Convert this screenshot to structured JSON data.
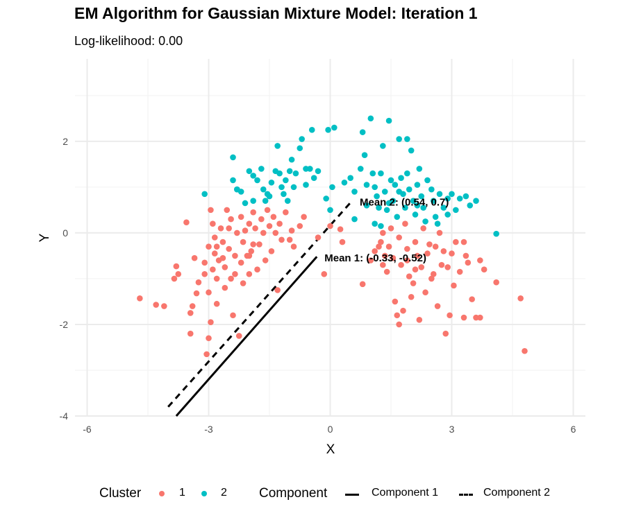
{
  "chart_data": {
    "type": "scatter",
    "title": "EM Algorithm for Gaussian Mixture Model: Iteration 1",
    "subtitle": "Log-likelihood: 0.00",
    "xlabel": "X",
    "ylabel": "Y",
    "xlim": [
      -6.3,
      6.3
    ],
    "ylim": [
      -4,
      3.8
    ],
    "x_ticks": [
      -6,
      -3,
      0,
      3,
      6
    ],
    "y_ticks": [
      -4,
      -2,
      0,
      2
    ],
    "grid": true,
    "legend_position": "bottom",
    "legend": {
      "cluster_title": "Cluster",
      "component_title": "Component",
      "cluster_labels": [
        "1",
        "2"
      ],
      "component_labels": [
        "Component 1",
        "Component 2"
      ]
    },
    "colors": {
      "cluster1": "#F8766D",
      "cluster2": "#00BFC4",
      "line": "#000000"
    },
    "means": [
      {
        "label": "Mean 1: (-0.33, -0.52)",
        "x": -0.33,
        "y": -0.52
      },
      {
        "label": "Mean 2: (0.54, 0.7)",
        "x": 0.54,
        "y": 0.7
      }
    ],
    "component_lines": [
      {
        "name": "Component 1",
        "style": "solid",
        "x": [
          -3.8,
          -0.33
        ],
        "y": [
          -4.0,
          -0.52
        ]
      },
      {
        "name": "Component 2",
        "style": "dashed",
        "x": [
          -4.0,
          0.54
        ],
        "y": [
          -3.8,
          0.7
        ]
      }
    ],
    "series": [
      {
        "name": "1",
        "points": [
          [
            -4.7,
            -1.43
          ],
          [
            -4.3,
            -1.57
          ],
          [
            -4.1,
            -1.6
          ],
          [
            -3.8,
            -0.73
          ],
          [
            -3.85,
            -1.0
          ],
          [
            -3.75,
            -0.9
          ],
          [
            -3.55,
            0.23
          ],
          [
            -3.45,
            -1.75
          ],
          [
            -3.45,
            -2.2
          ],
          [
            -3.4,
            -1.6
          ],
          [
            -3.35,
            -0.55
          ],
          [
            -3.3,
            -1.32
          ],
          [
            -3.25,
            -1.08
          ],
          [
            -3.1,
            -0.65
          ],
          [
            -3.1,
            -0.9
          ],
          [
            -3.0,
            -1.3
          ],
          [
            -3.05,
            -2.65
          ],
          [
            -3.0,
            -2.3
          ],
          [
            -2.95,
            -1.95
          ],
          [
            -3.0,
            -0.3
          ],
          [
            -2.95,
            0.5
          ],
          [
            -2.9,
            0.2
          ],
          [
            -2.85,
            -0.1
          ],
          [
            -2.8,
            -0.3
          ],
          [
            -2.8,
            -1.55
          ],
          [
            -2.8,
            -1.0
          ],
          [
            -2.75,
            -0.6
          ],
          [
            -2.7,
            0.1
          ],
          [
            -2.65,
            -0.2
          ],
          [
            -2.6,
            -0.75
          ],
          [
            -2.6,
            -1.2
          ],
          [
            -2.55,
            0.5
          ],
          [
            -2.5,
            -0.35
          ],
          [
            -2.45,
            0.3
          ],
          [
            -2.45,
            -1.0
          ],
          [
            -2.4,
            -1.8
          ],
          [
            -2.35,
            -0.5
          ],
          [
            -2.35,
            -0.9
          ],
          [
            -2.3,
            0.0
          ],
          [
            -2.25,
            -2.25
          ],
          [
            -2.2,
            0.35
          ],
          [
            -2.15,
            -0.2
          ],
          [
            -2.15,
            -1.1
          ],
          [
            -2.1,
            0.05
          ],
          [
            -2.05,
            -0.5
          ],
          [
            -2.0,
            -0.9
          ],
          [
            -2.0,
            0.2
          ],
          [
            -1.95,
            -0.4
          ],
          [
            -1.9,
            0.45
          ],
          [
            -1.85,
            0.1
          ],
          [
            -1.8,
            -0.8
          ],
          [
            -1.75,
            -0.25
          ],
          [
            -1.7,
            0.3
          ],
          [
            -1.65,
            0.0
          ],
          [
            -1.6,
            -0.6
          ],
          [
            -1.55,
            0.5
          ],
          [
            -1.5,
            0.15
          ],
          [
            -1.45,
            -0.4
          ],
          [
            -1.4,
            0.35
          ],
          [
            -1.35,
            0.0
          ],
          [
            -1.3,
            -1.25
          ],
          [
            -1.25,
            0.2
          ],
          [
            -1.2,
            -0.15
          ],
          [
            -1.1,
            0.45
          ],
          [
            -1.0,
            -0.15
          ],
          [
            -0.95,
            0.05
          ],
          [
            -0.9,
            -0.3
          ],
          [
            -0.75,
            0.15
          ],
          [
            -0.65,
            0.35
          ],
          [
            -0.3,
            -0.1
          ],
          [
            -0.15,
            -0.9
          ],
          [
            0.0,
            0.15
          ],
          [
            0.25,
            0.08
          ],
          [
            0.3,
            -0.2
          ],
          [
            0.8,
            -1.12
          ],
          [
            1.1,
            -0.4
          ],
          [
            1.2,
            -0.3
          ],
          [
            1.25,
            -0.2
          ],
          [
            1.3,
            0.0
          ],
          [
            1.35,
            -0.5
          ],
          [
            1.4,
            -0.85
          ],
          [
            1.45,
            -0.3
          ],
          [
            1.5,
            0.1
          ],
          [
            1.55,
            -0.55
          ],
          [
            1.6,
            -1.5
          ],
          [
            1.65,
            -1.8
          ],
          [
            1.7,
            -0.1
          ],
          [
            1.75,
            -0.7
          ],
          [
            1.8,
            -1.7
          ],
          [
            1.85,
            0.2
          ],
          [
            1.9,
            -0.35
          ],
          [
            1.95,
            -0.95
          ],
          [
            2.0,
            -1.4
          ],
          [
            2.05,
            -1.1
          ],
          [
            2.1,
            -0.2
          ],
          [
            2.15,
            -0.5
          ],
          [
            2.2,
            -1.9
          ],
          [
            2.25,
            -0.75
          ],
          [
            2.3,
            0.1
          ],
          [
            2.35,
            -1.3
          ],
          [
            2.4,
            -0.45
          ],
          [
            2.5,
            -1.0
          ],
          [
            2.6,
            -0.3
          ],
          [
            2.65,
            -1.6
          ],
          [
            2.7,
            0.0
          ],
          [
            2.75,
            -0.7
          ],
          [
            2.85,
            -2.2
          ],
          [
            2.9,
            -0.75
          ],
          [
            2.95,
            -1.8
          ],
          [
            3.0,
            -0.45
          ],
          [
            3.05,
            -1.15
          ],
          [
            3.1,
            -0.2
          ],
          [
            3.2,
            -0.85
          ],
          [
            3.3,
            -1.85
          ],
          [
            3.35,
            -0.5
          ],
          [
            3.4,
            -0.65
          ],
          [
            3.5,
            -1.45
          ],
          [
            3.6,
            -1.85
          ],
          [
            3.7,
            -1.85
          ],
          [
            3.8,
            -0.8
          ],
          [
            4.1,
            -1.08
          ],
          [
            4.7,
            -1.43
          ],
          [
            4.8,
            -2.58
          ],
          [
            -2.85,
            -0.45
          ],
          [
            -2.65,
            -0.55
          ],
          [
            -2.2,
            -0.65
          ],
          [
            -1.9,
            -0.25
          ],
          [
            -2.5,
            0.1
          ],
          [
            1.0,
            -0.6
          ],
          [
            2.45,
            -0.25
          ],
          [
            2.8,
            -0.4
          ],
          [
            1.9,
            -0.6
          ],
          [
            2.55,
            -0.9
          ],
          [
            1.3,
            -0.7
          ],
          [
            -2.9,
            -0.8
          ],
          [
            -2.0,
            -0.5
          ],
          [
            3.3,
            -0.2
          ],
          [
            3.7,
            -0.6
          ],
          [
            1.7,
            -2.0
          ],
          [
            2.1,
            -0.8
          ]
        ]
      },
      {
        "name": "2",
        "points": [
          [
            -3.1,
            0.85
          ],
          [
            -2.4,
            1.65
          ],
          [
            -2.4,
            1.15
          ],
          [
            -2.3,
            0.95
          ],
          [
            -2.2,
            0.9
          ],
          [
            -2.1,
            0.65
          ],
          [
            -2.0,
            1.35
          ],
          [
            -1.9,
            1.25
          ],
          [
            -1.9,
            0.7
          ],
          [
            -1.8,
            1.15
          ],
          [
            -1.7,
            1.4
          ],
          [
            -1.65,
            0.95
          ],
          [
            -1.6,
            0.7
          ],
          [
            -1.5,
            0.8
          ],
          [
            -1.45,
            1.1
          ],
          [
            -1.35,
            1.35
          ],
          [
            -1.3,
            1.9
          ],
          [
            -1.25,
            1.3
          ],
          [
            -1.2,
            1.0
          ],
          [
            -1.15,
            0.85
          ],
          [
            -1.1,
            1.15
          ],
          [
            -1.05,
            0.7
          ],
          [
            -1.0,
            1.35
          ],
          [
            -0.95,
            1.6
          ],
          [
            -0.9,
            1.0
          ],
          [
            -0.85,
            1.3
          ],
          [
            -0.75,
            1.85
          ],
          [
            -0.7,
            2.05
          ],
          [
            -0.6,
            1.05
          ],
          [
            -0.5,
            1.4
          ],
          [
            -0.45,
            2.25
          ],
          [
            -0.4,
            1.2
          ],
          [
            -0.3,
            1.35
          ],
          [
            -0.1,
            0.75
          ],
          [
            -0.05,
            2.25
          ],
          [
            0.0,
            0.5
          ],
          [
            0.05,
            1.0
          ],
          [
            0.35,
            1.1
          ],
          [
            0.5,
            1.2
          ],
          [
            0.6,
            0.9
          ],
          [
            0.75,
            1.4
          ],
          [
            0.8,
            2.2
          ],
          [
            0.85,
            1.7
          ],
          [
            0.9,
            0.6
          ],
          [
            1.0,
            2.5
          ],
          [
            1.05,
            1.3
          ],
          [
            1.1,
            1.0
          ],
          [
            1.15,
            0.8
          ],
          [
            1.2,
            0.55
          ],
          [
            1.25,
            1.3
          ],
          [
            1.3,
            1.9
          ],
          [
            1.35,
            0.9
          ],
          [
            1.4,
            0.5
          ],
          [
            1.45,
            2.45
          ],
          [
            1.5,
            1.15
          ],
          [
            1.55,
            0.7
          ],
          [
            1.6,
            1.05
          ],
          [
            1.65,
            0.35
          ],
          [
            1.7,
            2.05
          ],
          [
            1.75,
            1.2
          ],
          [
            1.8,
            0.85
          ],
          [
            1.85,
            0.55
          ],
          [
            1.9,
            1.3
          ],
          [
            1.95,
            0.95
          ],
          [
            2.0,
            1.8
          ],
          [
            2.05,
            0.7
          ],
          [
            2.1,
            0.4
          ],
          [
            2.15,
            1.05
          ],
          [
            2.2,
            1.4
          ],
          [
            2.25,
            0.8
          ],
          [
            2.3,
            0.55
          ],
          [
            2.4,
            1.15
          ],
          [
            2.5,
            0.95
          ],
          [
            2.55,
            0.7
          ],
          [
            2.6,
            0.35
          ],
          [
            2.7,
            0.85
          ],
          [
            2.8,
            0.55
          ],
          [
            2.9,
            0.75
          ],
          [
            3.0,
            0.85
          ],
          [
            3.1,
            0.5
          ],
          [
            3.2,
            0.75
          ],
          [
            3.35,
            0.8
          ],
          [
            3.45,
            0.6
          ],
          [
            3.6,
            0.7
          ],
          [
            4.1,
            -0.02
          ],
          [
            0.6,
            0.3
          ],
          [
            1.1,
            0.2
          ],
          [
            2.35,
            0.25
          ],
          [
            -2.3,
            0.95
          ],
          [
            -1.55,
            0.85
          ],
          [
            1.45,
            0.65
          ],
          [
            2.65,
            0.2
          ],
          [
            0.9,
            1.05
          ],
          [
            1.7,
            0.9
          ],
          [
            -0.6,
            1.4
          ],
          [
            2.15,
            0.6
          ],
          [
            1.25,
            0.15
          ],
          [
            2.9,
            0.4
          ],
          [
            1.9,
            2.05
          ],
          [
            0.1,
            2.3
          ]
        ]
      }
    ]
  }
}
